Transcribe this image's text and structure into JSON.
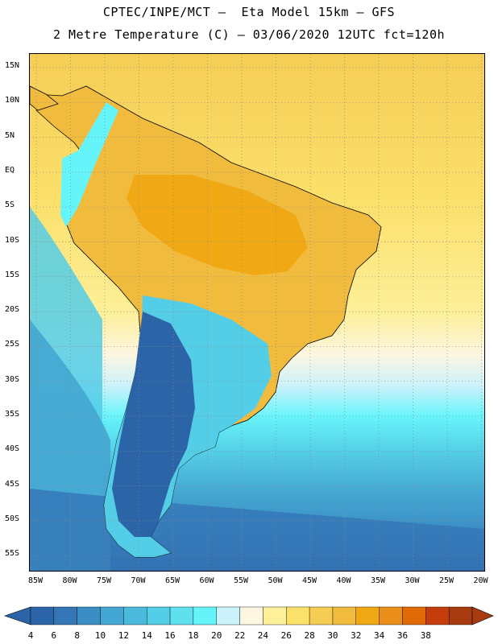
{
  "header": {
    "line1": "CPTEC/INPE/MCT –  Eta Model 15km – GFS",
    "line2": "2 Metre Temperature (C) – 03/06/2020 12UTC fct=120h"
  },
  "map": {
    "region": "South America",
    "lat_labels": [
      "15N",
      "10N",
      "5N",
      "EQ",
      "5S",
      "10S",
      "15S",
      "20S",
      "25S",
      "30S",
      "35S",
      "40S",
      "45S",
      "50S",
      "55S"
    ],
    "lon_labels": [
      "85W",
      "80W",
      "75W",
      "70W",
      "65W",
      "60W",
      "55W",
      "50W",
      "45W",
      "40W",
      "35W",
      "30W",
      "25W",
      "20W"
    ]
  },
  "colorbar": {
    "levels": [
      "4",
      "6",
      "8",
      "10",
      "12",
      "14",
      "16",
      "18",
      "20",
      "22",
      "24",
      "26",
      "28",
      "30",
      "32",
      "34",
      "36",
      "38"
    ],
    "colors": [
      "#2c64a8",
      "#3476b6",
      "#3b8ec4",
      "#44a6d2",
      "#4cbadd",
      "#54cde6",
      "#5ee0ef",
      "#66f4fb",
      "#ccf2fb",
      "#fdf6e1",
      "#fdf09a",
      "#fbe06a",
      "#f5cd55",
      "#f1bc3e",
      "#f0a814",
      "#e98e18",
      "#df6a06",
      "#c53d0c",
      "#a83a10"
    ],
    "low_arrow_color": "#2c64a8",
    "high_arrow_color": "#a83a10"
  }
}
